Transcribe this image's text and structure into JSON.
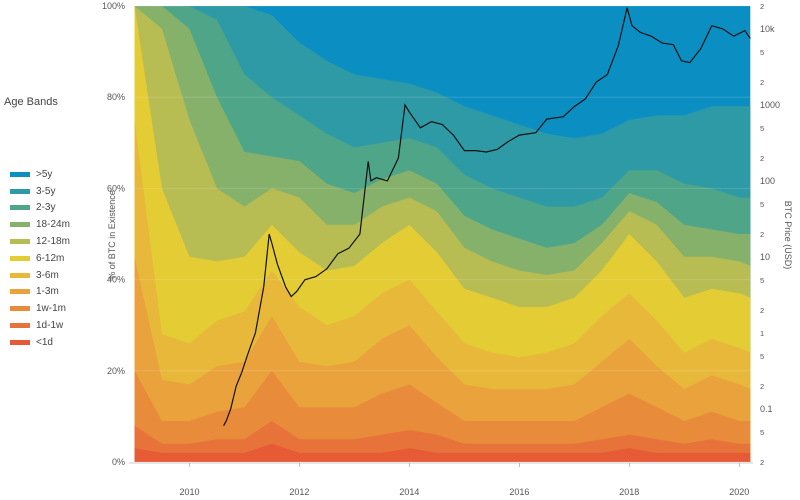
{
  "legend": {
    "title": "Age Bands",
    "items": [
      {
        "label": ">5y",
        "color": "#0b8fc3"
      },
      {
        "label": "3-5y",
        "color": "#2d9aa6"
      },
      {
        "label": "2-3y",
        "color": "#4ea587"
      },
      {
        "label": "18-24m",
        "color": "#86b16a"
      },
      {
        "label": "12-18m",
        "color": "#b7bd52"
      },
      {
        "label": "6-12m",
        "color": "#e3cc34"
      },
      {
        "label": "3-6m",
        "color": "#e8b83a"
      },
      {
        "label": "1-3m",
        "color": "#e9a23c"
      },
      {
        "label": "1w-1m",
        "color": "#e88c3b"
      },
      {
        "label": "1d-1w",
        "color": "#e7733a"
      },
      {
        "label": "<1d",
        "color": "#e65a35"
      }
    ]
  },
  "chart_data": {
    "type": "area",
    "stacked": true,
    "xlabel": "",
    "ylabel": "% of BTC in Existence",
    "y2label": "BTC Price (USD)",
    "x_ticks": [
      "2010",
      "2012",
      "2014",
      "2016",
      "2018",
      "2020"
    ],
    "y_ticks": [
      "0%",
      "20%",
      "40%",
      "60%",
      "80%",
      "100%"
    ],
    "y2_ticks": [
      "2",
      "5",
      "0.1",
      "2",
      "5",
      "1",
      "2",
      "5",
      "10",
      "2",
      "5",
      "100",
      "2",
      "5",
      "1000",
      "2",
      "5",
      "10k",
      "2"
    ],
    "xlim": [
      2008.9,
      2020.25
    ],
    "ylim": [
      0,
      100
    ],
    "y2_scale": "log",
    "x": [
      2009.0,
      2009.5,
      2010.0,
      2010.5,
      2011.0,
      2011.5,
      2012.0,
      2012.5,
      2013.0,
      2013.5,
      2014.0,
      2014.5,
      2015.0,
      2015.5,
      2016.0,
      2016.5,
      2017.0,
      2017.5,
      2018.0,
      2018.5,
      2019.0,
      2019.5,
      2020.0,
      2020.2
    ],
    "series_cumulative_upper_pct": [
      {
        "name": "<1d",
        "values": [
          3,
          2,
          2,
          2,
          2,
          4,
          2,
          2,
          2,
          2,
          3,
          2,
          2,
          2,
          2,
          2,
          2,
          2,
          3,
          2,
          2,
          2,
          2,
          2
        ]
      },
      {
        "name": "1d-1w",
        "values": [
          8,
          4,
          4,
          5,
          5,
          9,
          5,
          5,
          5,
          6,
          7,
          6,
          4,
          4,
          4,
          4,
          4,
          5,
          6,
          5,
          4,
          5,
          4,
          4
        ]
      },
      {
        "name": "1w-1m",
        "values": [
          20,
          9,
          9,
          11,
          12,
          20,
          12,
          12,
          12,
          15,
          17,
          13,
          9,
          9,
          9,
          9,
          9,
          12,
          15,
          12,
          9,
          11,
          9,
          9
        ]
      },
      {
        "name": "1-3m",
        "values": [
          45,
          18,
          17,
          21,
          22,
          32,
          22,
          21,
          22,
          27,
          30,
          23,
          17,
          16,
          16,
          16,
          17,
          22,
          27,
          21,
          16,
          19,
          17,
          16
        ]
      },
      {
        "name": "3-6m",
        "values": [
          75,
          28,
          26,
          31,
          33,
          42,
          34,
          30,
          32,
          37,
          40,
          33,
          26,
          24,
          23,
          24,
          26,
          32,
          37,
          31,
          24,
          27,
          25,
          24
        ]
      },
      {
        "name": "6-12m",
        "values": [
          100,
          60,
          45,
          44,
          45,
          52,
          46,
          42,
          43,
          48,
          52,
          46,
          38,
          36,
          34,
          34,
          36,
          42,
          50,
          44,
          36,
          38,
          37,
          36
        ]
      },
      {
        "name": "12-18m",
        "values": [
          100,
          95,
          75,
          60,
          56,
          60,
          58,
          52,
          52,
          56,
          58,
          55,
          47,
          44,
          42,
          41,
          42,
          48,
          55,
          52,
          45,
          45,
          44,
          43
        ]
      },
      {
        "name": "18-24m",
        "values": [
          100,
          100,
          95,
          80,
          68,
          67,
          66,
          61,
          59,
          62,
          64,
          61,
          54,
          51,
          49,
          47,
          48,
          52,
          59,
          57,
          52,
          51,
          50,
          50
        ]
      },
      {
        "name": "2-3y",
        "values": [
          100,
          100,
          100,
          97,
          85,
          80,
          76,
          72,
          69,
          70,
          71,
          69,
          63,
          60,
          58,
          56,
          56,
          58,
          64,
          64,
          61,
          60,
          58,
          58
        ]
      },
      {
        "name": "3-5y",
        "values": [
          100,
          100,
          100,
          100,
          100,
          98,
          92,
          88,
          85,
          84,
          83,
          81,
          78,
          76,
          74,
          72,
          71,
          72,
          75,
          76,
          76,
          78,
          78,
          78
        ]
      },
      {
        "name": ">5y",
        "values": [
          100,
          100,
          100,
          100,
          100,
          100,
          100,
          100,
          100,
          100,
          100,
          100,
          100,
          100,
          100,
          100,
          100,
          100,
          100,
          100,
          100,
          100,
          100,
          100
        ]
      }
    ],
    "price": {
      "name": "BTC Price (USD)",
      "x": [
        2010.62,
        2010.67,
        2010.75,
        2010.85,
        2010.95,
        2011.05,
        2011.2,
        2011.35,
        2011.45,
        2011.5,
        2011.6,
        2011.75,
        2011.85,
        2011.95,
        2012.1,
        2012.3,
        2012.5,
        2012.7,
        2012.9,
        2013.1,
        2013.25,
        2013.3,
        2013.4,
        2013.6,
        2013.8,
        2013.92,
        2014.0,
        2014.2,
        2014.4,
        2014.6,
        2014.8,
        2015.0,
        2015.2,
        2015.4,
        2015.6,
        2015.8,
        2016.0,
        2016.3,
        2016.5,
        2016.8,
        2017.0,
        2017.2,
        2017.4,
        2017.6,
        2017.8,
        2017.96,
        2018.05,
        2018.2,
        2018.4,
        2018.6,
        2018.8,
        2018.95,
        2019.1,
        2019.3,
        2019.5,
        2019.7,
        2019.9,
        2020.1,
        2020.2
      ],
      "y": [
        0.06,
        0.07,
        0.1,
        0.2,
        0.3,
        0.5,
        1.0,
        4.0,
        20.0,
        15.0,
        8.0,
        4.0,
        3.0,
        3.5,
        5.0,
        5.5,
        7.0,
        11.0,
        13.0,
        20.0,
        180.0,
        100.0,
        110.0,
        100.0,
        200.0,
        1000.0,
        800.0,
        500.0,
        600.0,
        550.0,
        400.0,
        250.0,
        250.0,
        240.0,
        260.0,
        330.0,
        400.0,
        430.0,
        650.0,
        700.0,
        950.0,
        1200.0,
        2000.0,
        2500.0,
        6000.0,
        19000.0,
        11000.0,
        9000.0,
        8000.0,
        6500.0,
        6200.0,
        3800.0,
        3600.0,
        5500.0,
        11000.0,
        10000.0,
        8000.0,
        9500.0,
        7500.0
      ],
      "ylim_log": [
        0.02,
        20000
      ]
    }
  }
}
